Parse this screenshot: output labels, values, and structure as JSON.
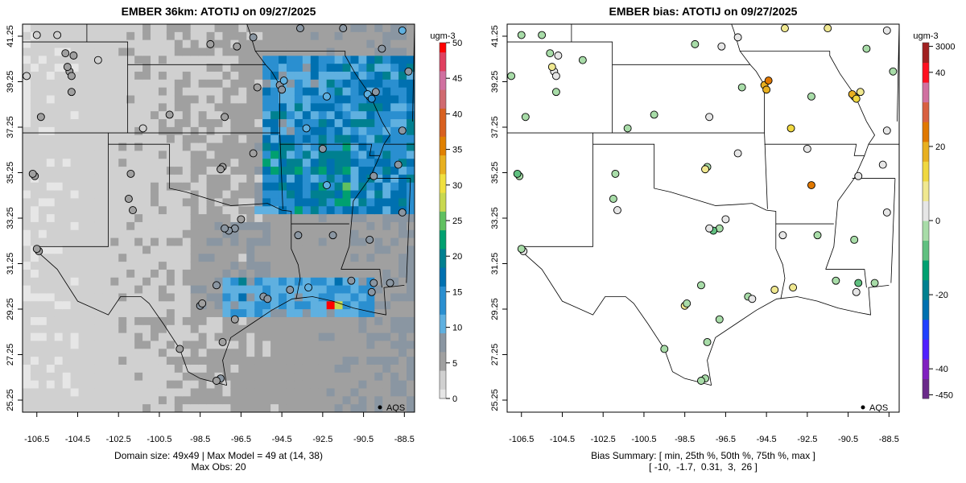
{
  "panels": [
    {
      "title": "EMBER 36km: ATOTIJ on 09/27/2025",
      "caption1": "Domain size: 49x49 | Max Model = 49 at (14, 38)",
      "caption2": "Max Obs: 20",
      "units": "ugm-3",
      "legend": "AQS"
    },
    {
      "title": "EMBER bias: ATOTIJ on 09/27/2025",
      "caption1": "Bias Summary: [ min, 25th %, 50th %, 75th %, max ]",
      "caption2": "[ -10,  -1.7,  0.31,  3,  26 ]",
      "units": "ugm-3",
      "legend": "AQS"
    }
  ],
  "chart_data": [
    {
      "type": "heatmap",
      "title": "EMBER 36km: ATOTIJ on 09/27/2025",
      "grid": "49x49",
      "max_model": 49,
      "max_model_cell": [
        14,
        38
      ],
      "max_obs": 20,
      "xlim": [
        -107.2,
        -88.0
      ],
      "ylim": [
        24.7,
        41.8
      ],
      "x_ticks": [
        "-106.5",
        "-104.5",
        "-102.5",
        "-100.5",
        "-98.5",
        "-96.5",
        "-94.5",
        "-92.5",
        "-90.5",
        "-88.5"
      ],
      "y_ticks": [
        "41.25",
        "39.25",
        "37.25",
        "35.25",
        "33.25",
        "31.25",
        "29.25",
        "27.25",
        "25.25"
      ],
      "colorbar_ticks": [
        "0",
        "5",
        "10",
        "15",
        "20",
        "25",
        "30",
        "35",
        "40",
        "45",
        "50"
      ],
      "colorbar_range": [
        0,
        50
      ]
    },
    {
      "type": "scatter",
      "title": "EMBER bias: ATOTIJ on 09/27/2025",
      "bias_summary": {
        "min": -10,
        "p25": -1.7,
        "p50": 0.31,
        "p75": 3,
        "max": 26
      },
      "colorbar_ticks": [
        "3000",
        "40",
        "20",
        "0",
        "-20",
        "-40",
        "-450"
      ],
      "colorbar_tick_values": [
        47,
        40,
        20,
        0,
        -20,
        -40,
        -47
      ]
    }
  ],
  "stations": [
    [
      -104.9,
      39.7,
      5,
      1
    ],
    [
      -105.0,
      39.9,
      5,
      8
    ],
    [
      -104.8,
      39.5,
      6,
      3
    ],
    [
      -105.1,
      40.5,
      5,
      -1
    ],
    [
      -104.7,
      40.4,
      5,
      0
    ],
    [
      -106.5,
      41.3,
      4,
      -1
    ],
    [
      -107.0,
      39.5,
      4,
      -3
    ],
    [
      -105.5,
      41.3,
      4,
      -2
    ],
    [
      -103.5,
      40.2,
      4,
      -2
    ],
    [
      -104.8,
      38.8,
      6,
      -3
    ],
    [
      -106.3,
      37.7,
      5,
      -3
    ],
    [
      -106.6,
      35.1,
      6,
      -4
    ],
    [
      -106.7,
      35.2,
      5,
      -10
    ],
    [
      -106.4,
      31.8,
      6,
      0
    ],
    [
      -106.5,
      31.9,
      5,
      -1
    ],
    [
      -101.9,
      35.2,
      5,
      -1
    ],
    [
      -101.8,
      33.6,
      6,
      2
    ],
    [
      -97.4,
      35.5,
      6,
      -2
    ],
    [
      -95.9,
      36.1,
      6,
      4
    ],
    [
      -97.5,
      35.4,
      5,
      6
    ],
    [
      -97.3,
      37.7,
      6,
      1
    ],
    [
      -95.7,
      39.0,
      6,
      -3
    ],
    [
      -94.6,
      39.1,
      8,
      20
    ],
    [
      -94.5,
      38.9,
      9,
      16
    ],
    [
      -94.4,
      39.3,
      10,
      25
    ],
    [
      -93.3,
      37.2,
      10,
      15
    ],
    [
      -92.3,
      34.7,
      12,
      24
    ],
    [
      -90.2,
      38.6,
      10,
      -2
    ],
    [
      -90.3,
      38.7,
      12,
      18
    ],
    [
      -90.1,
      38.5,
      14,
      12
    ],
    [
      -89.9,
      38.8,
      9,
      6
    ],
    [
      -96.8,
      32.8,
      7,
      -4
    ],
    [
      -97.1,
      32.7,
      8,
      -6
    ],
    [
      -97.3,
      32.8,
      7,
      2
    ],
    [
      -96.5,
      33.2,
      6,
      4
    ],
    [
      -95.4,
      29.8,
      8,
      -5
    ],
    [
      -95.2,
      29.7,
      9,
      4
    ],
    [
      -94.1,
      30.1,
      9,
      10
    ],
    [
      -93.2,
      30.2,
      10,
      8
    ],
    [
      -91.1,
      30.5,
      9,
      -1
    ],
    [
      -90.1,
      30.0,
      9,
      2
    ],
    [
      -90.0,
      30.4,
      8,
      -6
    ],
    [
      -89.2,
      30.4,
      8,
      -1
    ],
    [
      -98.5,
      29.4,
      7,
      6
    ],
    [
      -98.4,
      29.5,
      6,
      -2
    ],
    [
      -97.7,
      30.3,
      7,
      -1
    ],
    [
      -97.4,
      27.8,
      6,
      -3
    ],
    [
      -97.5,
      26.2,
      7,
      -1
    ],
    [
      -97.7,
      26.1,
      6,
      -5
    ],
    [
      -99.5,
      27.5,
      5,
      -3
    ],
    [
      -96.8,
      28.8,
      6,
      -2
    ],
    [
      -92.0,
      32.5,
      8,
      -1
    ],
    [
      -93.7,
      32.5,
      9,
      3
    ],
    [
      -90.2,
      32.3,
      9,
      -1
    ],
    [
      -88.6,
      33.5,
      8,
      0
    ],
    [
      -90.0,
      35.1,
      9,
      5
    ],
    [
      -88.8,
      35.6,
      8,
      1
    ],
    [
      -88.6,
      37.1,
      9,
      2
    ],
    [
      -88.3,
      39.7,
      9,
      -2
    ],
    [
      -89.6,
      40.7,
      8,
      -1
    ],
    [
      -98.0,
      40.9,
      5,
      -1
    ],
    [
      -96.7,
      40.8,
      6,
      0
    ],
    [
      -95.9,
      41.2,
      7,
      3
    ],
    [
      -93.6,
      41.6,
      8,
      10
    ],
    [
      -91.5,
      41.6,
      9,
      6
    ],
    [
      -88.6,
      41.5,
      10,
      3
    ],
    [
      -101.3,
      37.2,
      4,
      -2
    ],
    [
      -100.0,
      37.8,
      5,
      -1
    ],
    [
      -102.0,
      34.1,
      5,
      -2
    ],
    [
      -92.3,
      38.6,
      10,
      -2
    ],
    [
      -92.5,
      36.3,
      8,
      0
    ]
  ],
  "colors": {
    "obs_scale": [
      "#e6e6e6",
      "#d0d0d0",
      "#a0a0a0",
      "#8a96a2",
      "#5fb0e0",
      "#2a8fd0",
      "#0070b0",
      "#008090",
      "#00a070",
      "#60c060",
      "#c8d850",
      "#f0e040",
      "#e8b020",
      "#e08000",
      "#d86020",
      "#d06a70",
      "#d070a0",
      "#e04060",
      "#ff0000"
    ],
    "bias_scale": [
      "#6a2a8a",
      "#8020c0",
      "#5020ff",
      "#2040ff",
      "#0070b0",
      "#008090",
      "#00a070",
      "#60c080",
      "#a8dca8",
      "#e6e6e6",
      "#f0e890",
      "#f0d840",
      "#e8b020",
      "#e07800",
      "#d86040",
      "#d070a0",
      "#ff1020",
      "#a02020"
    ]
  }
}
